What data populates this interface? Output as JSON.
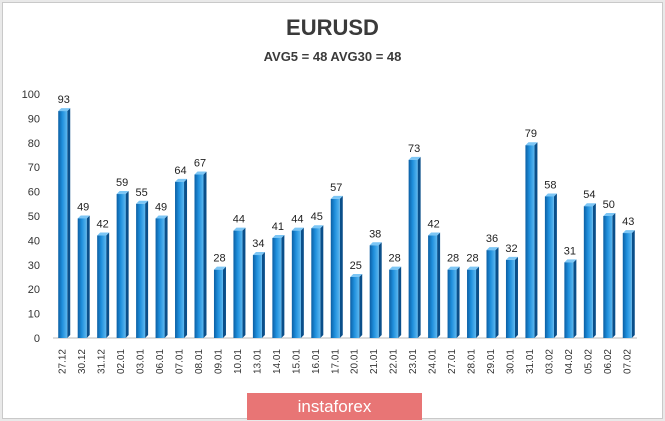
{
  "chart_data": {
    "type": "bar",
    "title": "EURUSD",
    "subtitle": "AVG5 = 48 AVG30 = 48",
    "categories": [
      "27.12",
      "30.12",
      "31.12",
      "02.01",
      "03.01",
      "06.01",
      "07.01",
      "08.01",
      "09.01",
      "10.01",
      "13.01",
      "14.01",
      "15.01",
      "16.01",
      "17.01",
      "20.01",
      "21.01",
      "22.01",
      "23.01",
      "24.01",
      "27.01",
      "28.01",
      "29.01",
      "30.01",
      "31.01",
      "03.02",
      "04.02",
      "05.02",
      "06.02",
      "07.02"
    ],
    "values": [
      93,
      49,
      42,
      59,
      55,
      49,
      64,
      67,
      28,
      44,
      34,
      41,
      44,
      45,
      57,
      25,
      38,
      28,
      73,
      42,
      28,
      28,
      36,
      32,
      79,
      58,
      31,
      54,
      50,
      43
    ],
    "yticks": [
      0,
      10,
      20,
      30,
      40,
      50,
      60,
      70,
      80,
      90,
      100
    ],
    "ylim": [
      0,
      100
    ],
    "grid": false,
    "legend": "none",
    "bar_color": "#1f8fdc"
  },
  "brand": {
    "logo_text": "instaforex",
    "color": "#e87575"
  }
}
